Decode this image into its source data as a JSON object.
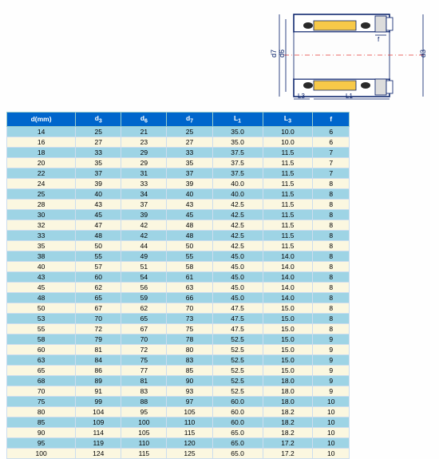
{
  "diagram": {
    "labels": {
      "d7": "d7",
      "d6": "d6",
      "d3": "d3",
      "f": "f",
      "L3": "L3",
      "L1": "L1"
    },
    "colors": {
      "outline": "#001a66",
      "yellow": "#f7c948",
      "red_axis": "#e53935",
      "gray": "#dcdcdc",
      "black_fill": "#2a2a2a"
    }
  },
  "table": {
    "header_bg": "#0066cc",
    "header_fg": "#ffffff",
    "row_odd_bg": "#9ed4e5",
    "row_even_bg": "#fbf7e0",
    "border_color": "#cde",
    "columns": [
      "d(mm)",
      "d3",
      "d6",
      "d7",
      "L1",
      "L3",
      "f"
    ],
    "rows": [
      [
        14,
        25,
        21,
        25,
        "35.0",
        "10.0",
        6
      ],
      [
        16,
        27,
        23,
        27,
        "35.0",
        "10.0",
        6
      ],
      [
        18,
        33,
        29,
        33,
        "37.5",
        "11.5",
        7
      ],
      [
        20,
        35,
        29,
        35,
        "37.5",
        "11.5",
        7
      ],
      [
        22,
        37,
        31,
        37,
        "37.5",
        "11.5",
        7
      ],
      [
        24,
        39,
        33,
        39,
        "40.0",
        "11.5",
        8
      ],
      [
        25,
        40,
        34,
        40,
        "40.0",
        "11.5",
        8
      ],
      [
        28,
        43,
        37,
        43,
        "42.5",
        "11.5",
        8
      ],
      [
        30,
        45,
        39,
        45,
        "42.5",
        "11.5",
        8
      ],
      [
        32,
        47,
        42,
        48,
        "42.5",
        "11.5",
        8
      ],
      [
        33,
        48,
        42,
        48,
        "42.5",
        "11.5",
        8
      ],
      [
        35,
        50,
        44,
        50,
        "42.5",
        "11.5",
        8
      ],
      [
        38,
        55,
        49,
        55,
        "45.0",
        "14.0",
        8
      ],
      [
        40,
        57,
        51,
        58,
        "45.0",
        "14.0",
        8
      ],
      [
        43,
        60,
        54,
        61,
        "45.0",
        "14.0",
        8
      ],
      [
        45,
        62,
        56,
        63,
        "45.0",
        "14.0",
        8
      ],
      [
        48,
        65,
        59,
        66,
        "45.0",
        "14.0",
        8
      ],
      [
        50,
        67,
        62,
        70,
        "47.5",
        "15.0",
        8
      ],
      [
        53,
        70,
        65,
        73,
        "47.5",
        "15.0",
        8
      ],
      [
        55,
        72,
        67,
        75,
        "47.5",
        "15.0",
        8
      ],
      [
        58,
        79,
        70,
        78,
        "52.5",
        "15.0",
        9
      ],
      [
        60,
        81,
        72,
        80,
        "52.5",
        "15.0",
        9
      ],
      [
        63,
        84,
        75,
        83,
        "52.5",
        "15.0",
        9
      ],
      [
        65,
        86,
        77,
        85,
        "52.5",
        "15.0",
        9
      ],
      [
        68,
        89,
        81,
        90,
        "52.5",
        "18.0",
        9
      ],
      [
        70,
        91,
        83,
        93,
        "52.5",
        "18.0",
        9
      ],
      [
        75,
        99,
        88,
        97,
        "60.0",
        "18.0",
        10
      ],
      [
        80,
        104,
        95,
        105,
        "60.0",
        "18.2",
        10
      ],
      [
        85,
        109,
        100,
        110,
        "60.0",
        "18.2",
        10
      ],
      [
        90,
        114,
        105,
        115,
        "65.0",
        "18.2",
        10
      ],
      [
        95,
        119,
        110,
        120,
        "65.0",
        "17.2",
        10
      ],
      [
        100,
        124,
        115,
        125,
        "65.0",
        "17.2",
        10
      ]
    ]
  }
}
